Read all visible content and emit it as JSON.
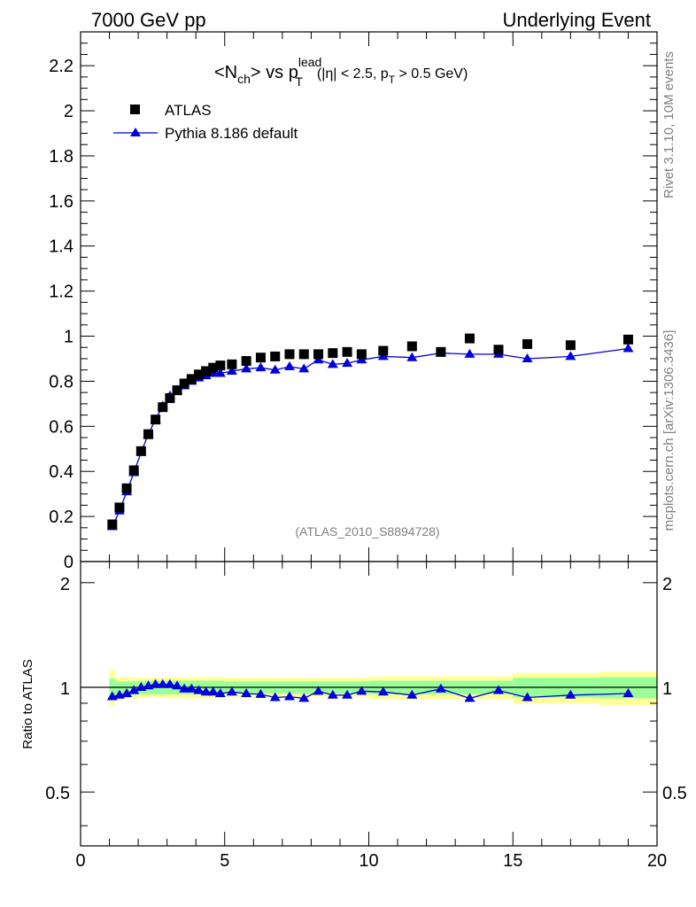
{
  "header": {
    "left": "7000 GeV pp",
    "right": "Underlying Event"
  },
  "plot_title": {
    "main": "<N",
    "sub_ch": "ch",
    "mid": "> vs p",
    "sup_lead": "lead",
    "sub_t": "T",
    "cuts_a": "(|η| < 2.5, p",
    "cuts_t": "T",
    "cuts_b": " > 0.5 GeV)"
  },
  "legend": {
    "data_label": "ATLAS",
    "mc_label": "Pythia 8.186 default"
  },
  "watermark": "(ATLAS_2010_S8894728)",
  "side_text": {
    "top": "Rivet 3.1.10,  10M events",
    "bottom": "mcplots.cern.ch [arXiv:1306.3436]"
  },
  "ratio_ylabel": "Ratio to ATLAS",
  "colors": {
    "data": "#000000",
    "mc": "#0000dd",
    "band_inner": "#99ff99",
    "band_outer": "#ffff99"
  },
  "chart_data": {
    "type": "scatter",
    "title": "<Nch> vs pT lead (|η| < 2.5, pT > 0.5 GeV)",
    "xlim": [
      0,
      20
    ],
    "ylim": [
      0,
      2.35
    ],
    "x_ticks": [
      0,
      5,
      10,
      15,
      20
    ],
    "y_ticks": [
      0,
      0.2,
      0.4,
      0.6,
      0.8,
      1,
      1.2,
      1.4,
      1.6,
      1.8,
      2,
      2.2
    ],
    "y_tick_labels": [
      "0",
      "0.2",
      "0.4",
      "0.6",
      "0.8",
      "1",
      "1.2",
      "1.4",
      "1.6",
      "1.8",
      "2",
      "2.2"
    ],
    "x": [
      1.1,
      1.35,
      1.6,
      1.85,
      2.1,
      2.35,
      2.6,
      2.85,
      3.1,
      3.35,
      3.6,
      3.85,
      4.1,
      4.35,
      4.6,
      4.85,
      5.25,
      5.75,
      6.25,
      6.75,
      7.25,
      7.75,
      8.25,
      8.75,
      9.25,
      9.75,
      10.5,
      11.5,
      12.5,
      13.5,
      14.5,
      15.5,
      17.0,
      19.0
    ],
    "series": [
      {
        "name": "ATLAS",
        "values": [
          0.165,
          0.24,
          0.325,
          0.405,
          0.49,
          0.565,
          0.63,
          0.685,
          0.725,
          0.76,
          0.79,
          0.81,
          0.83,
          0.845,
          0.86,
          0.87,
          0.875,
          0.89,
          0.905,
          0.91,
          0.92,
          0.92,
          0.92,
          0.925,
          0.93,
          0.92,
          0.935,
          0.955,
          0.93,
          0.99,
          0.94,
          0.965,
          0.96,
          0.985
        ]
      },
      {
        "name": "Pythia 8.186 default",
        "values": [
          0.155,
          0.225,
          0.31,
          0.395,
          0.485,
          0.565,
          0.63,
          0.69,
          0.735,
          0.76,
          0.78,
          0.8,
          0.815,
          0.825,
          0.835,
          0.835,
          0.845,
          0.855,
          0.86,
          0.85,
          0.865,
          0.855,
          0.895,
          0.875,
          0.88,
          0.895,
          0.91,
          0.905,
          0.925,
          0.92,
          0.92,
          0.9,
          0.91,
          0.945
        ]
      }
    ],
    "ratio": {
      "ylabel": "Ratio to ATLAS",
      "ylim": [
        0.35,
        2.3
      ],
      "y_ticks": [
        0.5,
        1,
        2
      ],
      "y_tick_labels": [
        "0.5",
        "1",
        "2"
      ],
      "values": [
        0.94,
        0.95,
        0.96,
        0.98,
        1.0,
        1.01,
        1.02,
        1.02,
        1.02,
        1.01,
        0.99,
        0.99,
        0.98,
        0.97,
        0.97,
        0.96,
        0.97,
        0.96,
        0.955,
        0.935,
        0.94,
        0.93,
        0.975,
        0.95,
        0.95,
        0.975,
        0.97,
        0.95,
        0.99,
        0.93,
        0.98,
        0.935,
        0.95,
        0.96
      ],
      "band_edges": [
        1.0,
        1.2,
        2.0,
        3.0,
        5.0,
        10.0,
        15.0,
        18.0,
        20.0
      ],
      "inner_lo": [
        0.93,
        0.95,
        0.955,
        0.955,
        0.96,
        0.955,
        0.935,
        0.93
      ],
      "inner_hi": [
        1.06,
        1.04,
        1.045,
        1.045,
        1.04,
        1.045,
        1.065,
        1.07
      ],
      "outer_lo": [
        0.89,
        0.93,
        0.935,
        0.93,
        0.94,
        0.925,
        0.9,
        0.89
      ],
      "outer_hi": [
        1.12,
        1.07,
        1.065,
        1.07,
        1.065,
        1.075,
        1.1,
        1.11
      ]
    }
  }
}
